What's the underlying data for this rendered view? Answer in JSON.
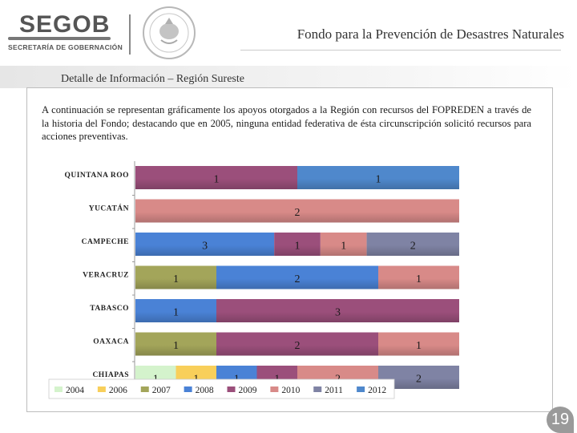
{
  "header": {
    "logo_name": "SEGOB",
    "logo_subtitle": "SECRETARÍA DE GOBERNACIÓN",
    "app_title": "Fondo para la Prevención de Desastres Naturales"
  },
  "section_title": "Detalle de Información – Región Sureste",
  "description": "A continuación se representan gráficamente los apoyos otorgados a la Región con recursos del FOPREDEN a través de la historia del Fondo; destacando que en 2005, ninguna entidad federativa de ésta circunscripción solicitó recursos para acciones preventivas.",
  "page_number": "19",
  "colors": {
    "2004": "#d4f3cc",
    "2006": "#f8cf5a",
    "2007": "#a3a55a",
    "2008": "#4a82d6",
    "2009": "#9b4f7b",
    "2010": "#d88a88",
    "2011": "#7f83a4",
    "2012": "#4f88cc"
  },
  "chart_data": {
    "type": "bar",
    "orientation": "horizontal",
    "stacked": "100%",
    "title": "",
    "xlabel": "",
    "ylabel": "",
    "categories": [
      "QUINTANA ROO",
      "YUCATÁN",
      "CAMPECHE",
      "VERACRUZ",
      "TABASCO",
      "OAXACA",
      "CHIAPAS"
    ],
    "series": [
      {
        "name": "2004",
        "values": [
          0,
          0,
          0,
          0,
          0,
          0,
          1
        ]
      },
      {
        "name": "2006",
        "values": [
          0,
          0,
          0,
          0,
          0,
          0,
          1
        ]
      },
      {
        "name": "2007",
        "values": [
          0,
          0,
          0,
          1,
          0,
          1,
          0
        ]
      },
      {
        "name": "2008",
        "values": [
          0,
          0,
          3,
          2,
          1,
          0,
          1
        ]
      },
      {
        "name": "2009",
        "values": [
          1,
          0,
          1,
          0,
          3,
          2,
          1
        ]
      },
      {
        "name": "2010",
        "values": [
          0,
          2,
          1,
          1,
          0,
          1,
          2
        ]
      },
      {
        "name": "2011",
        "values": [
          0,
          0,
          2,
          0,
          0,
          0,
          2
        ]
      },
      {
        "name": "2012",
        "values": [
          1,
          0,
          0,
          0,
          0,
          0,
          0
        ]
      }
    ],
    "legend_position": "bottom",
    "grid": false
  }
}
